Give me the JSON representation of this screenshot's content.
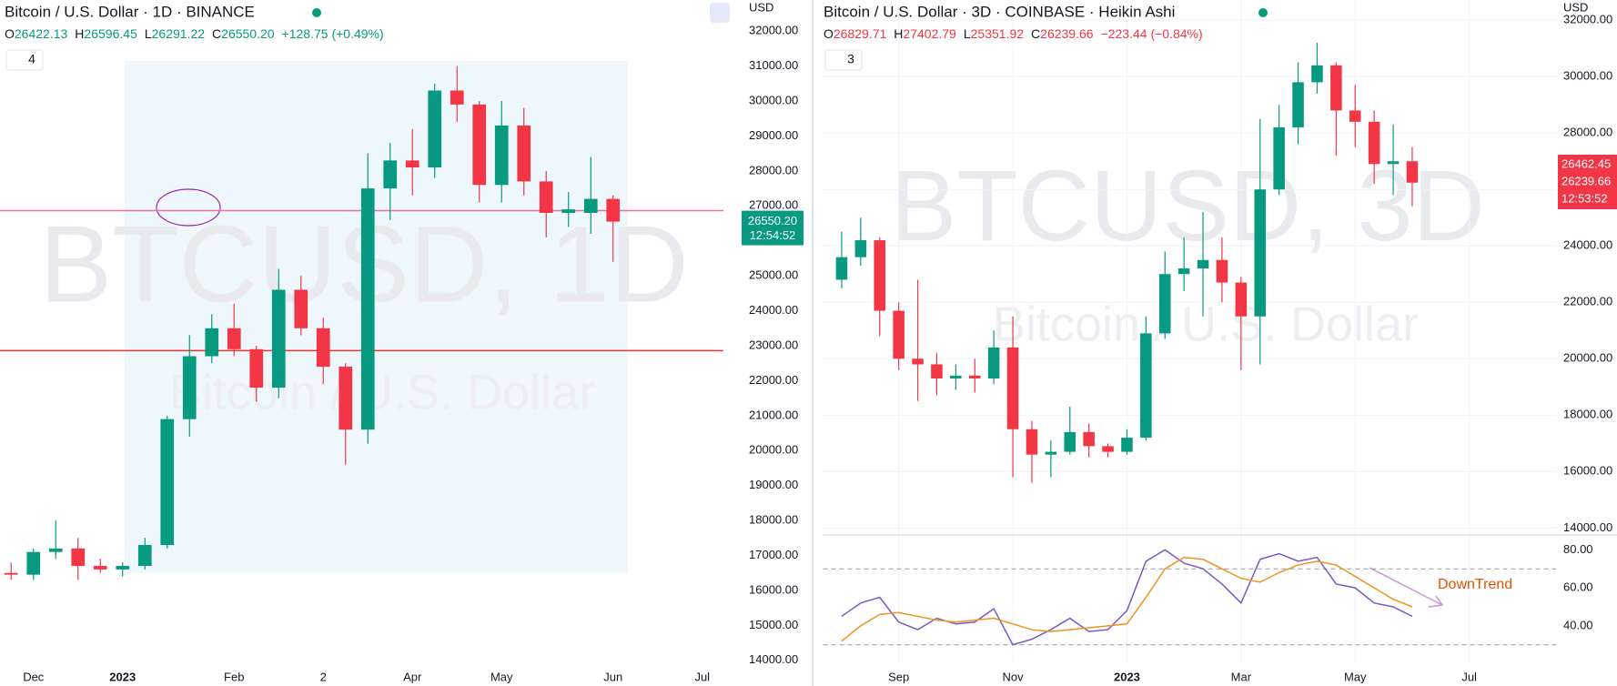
{
  "chart_data": [
    {
      "type": "candlestick",
      "title": "Bitcoin / U.S. Dollar · 1D · BINANCE",
      "ohlc": [
        {
          "label": "O",
          "value": "26422.13"
        },
        {
          "label": "H",
          "value": "26596.45"
        },
        {
          "label": "L",
          "value": "26291.22"
        },
        {
          "label": "C",
          "value": "26550.20"
        }
      ],
      "change": "+128.75 (+0.49%)",
      "indicators": "4",
      "currency": "USD",
      "watermark": "BTCUSD, 1D",
      "watermark_sub": "Bitcoin / U.S. Dollar",
      "last_price": "26550.20",
      "countdown": "12:54:52",
      "up_color": "#089981",
      "down_color": "#f23645",
      "categories": [
        null,
        "Dec",
        null,
        null,
        null,
        "2023",
        null,
        null,
        null,
        null,
        "Feb",
        null,
        null,
        null,
        "2",
        null,
        null,
        null,
        "Apr",
        null,
        null,
        null,
        "May",
        null,
        null,
        null,
        null,
        "Jun",
        null,
        null,
        null,
        "Jul",
        null,
        null
      ],
      "open": [
        16500,
        16450,
        17100,
        17200,
        16700,
        16600,
        16700,
        17300,
        20900,
        22700,
        23500,
        22900,
        21800,
        24600,
        23500,
        22400,
        20600,
        27500,
        28300,
        28100,
        30300,
        29900,
        27600,
        29300,
        27700,
        26800,
        26800,
        27200,
        null,
        null,
        null,
        null,
        null,
        null
      ],
      "high": [
        16800,
        17200,
        18000,
        17500,
        16900,
        16800,
        17500,
        21000,
        23300,
        23900,
        24200,
        23000,
        25200,
        25000,
        23800,
        22500,
        28500,
        28800,
        29200,
        30500,
        31000,
        30000,
        30000,
        29800,
        28000,
        27400,
        28400,
        27300,
        null,
        null,
        null,
        null,
        null,
        null
      ],
      "low": [
        16300,
        16300,
        16900,
        16300,
        16500,
        16400,
        16600,
        17200,
        20400,
        22500,
        22700,
        21400,
        21500,
        23300,
        21900,
        19600,
        20200,
        26600,
        27300,
        27800,
        29400,
        27100,
        27100,
        27300,
        26100,
        26400,
        26200,
        25400,
        null,
        null,
        null,
        null,
        null,
        null
      ],
      "close": [
        16450,
        17100,
        17200,
        16700,
        16600,
        16700,
        17300,
        20900,
        22700,
        23500,
        22900,
        21800,
        24600,
        23500,
        22400,
        20600,
        27500,
        28300,
        28100,
        30300,
        29900,
        27600,
        29300,
        27700,
        26800,
        26900,
        27200,
        26550,
        null,
        null,
        null,
        null,
        null,
        null
      ],
      "hlines": [
        {
          "value": 26866,
          "color": "#e57399"
        },
        {
          "value": 22860,
          "color": "#e53935"
        }
      ],
      "ylim": [
        13760,
        32890
      ],
      "yticks": [
        {
          "value": 14000,
          "label": "14000.00"
        },
        {
          "value": 15000,
          "label": "15000.00"
        },
        {
          "value": 16000,
          "label": "16000.00"
        },
        {
          "value": 17000,
          "label": "17000.00"
        },
        {
          "value": 18000,
          "label": "18000.00"
        },
        {
          "value": 19000,
          "label": "19000.00"
        },
        {
          "value": 20000,
          "label": "20000.00"
        },
        {
          "value": 21000,
          "label": "21000.00"
        },
        {
          "value": 22000,
          "label": "22000.00"
        },
        {
          "value": 23000,
          "label": "23000.00"
        },
        {
          "value": 24000,
          "label": "24000.00"
        },
        {
          "value": 25000,
          "label": "25000.00"
        },
        {
          "value": 26000,
          "label": "26000.00"
        },
        {
          "value": 27000,
          "label": "27000.00"
        },
        {
          "value": 28000,
          "label": "28000.00"
        },
        {
          "value": 29000,
          "label": "29000.00"
        },
        {
          "value": 30000,
          "label": "30000.00"
        },
        {
          "value": 31000,
          "label": "31000.00"
        },
        {
          "value": 32000,
          "label": "32000.00"
        }
      ],
      "grid": false
    },
    {
      "type": "candlestick",
      "title": "Bitcoin / U.S. Dollar · 3D · COINBASE · Heikin Ashi",
      "ohlc": [
        {
          "label": "O",
          "value": "26829.71"
        },
        {
          "label": "H",
          "value": "27402.79"
        },
        {
          "label": "L",
          "value": "25351.92"
        },
        {
          "label": "C",
          "value": "26239.66"
        }
      ],
      "change": "−223.44 (−0.84%)",
      "indicators": "3",
      "currency": "USD",
      "watermark": "BTCUSD, 3D",
      "watermark_sub": "Bitcoin / U.S. Dollar",
      "price_tags": [
        "26462.45",
        "26239.66",
        "12:53:52"
      ],
      "up_color": "#089981",
      "down_color": "#f23645",
      "categories": [
        null,
        null,
        null,
        "Sep",
        null,
        null,
        null,
        null,
        null,
        "Nov",
        null,
        null,
        null,
        null,
        null,
        "2023",
        null,
        null,
        null,
        null,
        null,
        "Mar",
        null,
        null,
        null,
        null,
        null,
        "May",
        null,
        null,
        null,
        null,
        null,
        "Jul"
      ],
      "open": [
        22800,
        23600,
        24200,
        21700,
        20000,
        19800,
        19300,
        19400,
        19300,
        20400,
        17500,
        16600,
        16700,
        17400,
        16900,
        16700,
        17200,
        20900,
        23000,
        23200,
        23500,
        22700,
        21500,
        26000,
        28200,
        29800,
        30400,
        28800,
        28400,
        26900,
        27000,
        null,
        null,
        null
      ],
      "high": [
        24500,
        25000,
        24300,
        22000,
        22800,
        20200,
        19800,
        20000,
        21000,
        21500,
        17800,
        17100,
        18300,
        17700,
        17000,
        17500,
        21500,
        23800,
        24300,
        25200,
        24300,
        22900,
        28500,
        29000,
        30500,
        31200,
        30500,
        29700,
        28800,
        28300,
        27500,
        null,
        null,
        null
      ],
      "low": [
        22500,
        23300,
        20800,
        19600,
        18500,
        18700,
        18900,
        18800,
        19100,
        15800,
        15600,
        15800,
        16600,
        16500,
        16500,
        16600,
        17100,
        20700,
        22400,
        21500,
        22000,
        19600,
        19800,
        25800,
        27600,
        29400,
        27200,
        27500,
        26200,
        25800,
        25400,
        null,
        null,
        null
      ],
      "close": [
        23600,
        24200,
        21700,
        20000,
        19800,
        19300,
        19400,
        19300,
        20400,
        17500,
        16600,
        16700,
        17400,
        16900,
        16700,
        17200,
        20900,
        23000,
        23200,
        23500,
        22700,
        21500,
        26000,
        28200,
        29800,
        30400,
        28800,
        28400,
        26900,
        27000,
        26240,
        null,
        null,
        null
      ],
      "ylim": [
        13817,
        32715
      ],
      "yticks": [
        {
          "value": 14000,
          "label": "14000.00"
        },
        {
          "value": 16000,
          "label": "16000.00"
        },
        {
          "value": 18000,
          "label": "18000.00"
        },
        {
          "value": 20000,
          "label": "20000.00"
        },
        {
          "value": 22000,
          "label": "22000.00"
        },
        {
          "value": 24000,
          "label": "24000.00"
        },
        {
          "value": 26000,
          "label": "26000.00"
        },
        {
          "value": 28000,
          "label": "28000.00"
        },
        {
          "value": 30000,
          "label": "30000.00"
        },
        {
          "value": 32000,
          "label": "32000.00"
        }
      ],
      "grid": true,
      "indicator": {
        "ylim": [
          20.8,
          85.9
        ],
        "yticks": [
          {
            "value": 40,
            "label": "40.00"
          },
          {
            "value": 60,
            "label": "60.00"
          },
          {
            "value": 80,
            "label": "80.00"
          }
        ],
        "bands": [
          70,
          30
        ],
        "series": [
          {
            "color": "#7e57c2",
            "values": [
              45,
              52,
              55,
              42,
              38,
              44,
              41,
              42,
              49,
              30,
              33,
              38,
              44,
              37,
              38,
              48,
              74,
              80,
              73,
              70,
              62,
              52,
              75,
              78,
              74,
              76,
              62,
              60,
              52,
              50,
              45,
              null,
              null,
              null
            ]
          },
          {
            "color": "#f0931f",
            "values": [
              32,
              40,
              46,
              47,
              45,
              43,
              42,
              43,
              44,
              41,
              38,
              37,
              38,
              39,
              40,
              41,
              55,
              70,
              76,
              75,
              70,
              65,
              63,
              68,
              72,
              74,
              72,
              66,
              60,
              54,
              50,
              null,
              null,
              null
            ]
          }
        ],
        "annotation": "DownTrend"
      }
    }
  ]
}
